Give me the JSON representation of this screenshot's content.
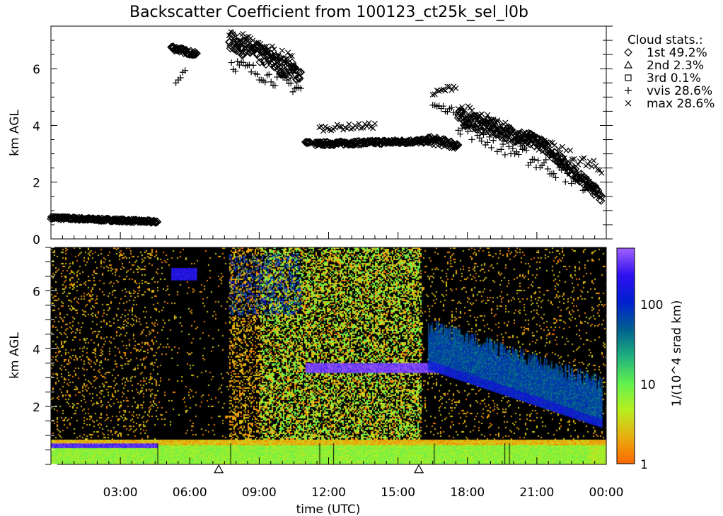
{
  "chart_data": [
    {
      "type": "scatter",
      "title": "Backscatter Coefficient from 100123_ct25k_sel_l0b",
      "ylabel": "km AGL",
      "xlim_hours_utc": [
        0,
        24
      ],
      "ylim": [
        0,
        7.5
      ],
      "yticks": [
        "0",
        "2",
        "4",
        "6"
      ],
      "legend": {
        "placement": "right",
        "title": "Cloud stats.:",
        "entries": [
          {
            "symbol": "diamond",
            "label": "1st",
            "value": "49.2%"
          },
          {
            "symbol": "triangle",
            "label": "2nd",
            "value": "2.3%"
          },
          {
            "symbol": "square",
            "label": "3rd",
            "value": "0.1%"
          },
          {
            "symbol": "plus",
            "label": "vvis",
            "value": "28.6%"
          },
          {
            "symbol": "x",
            "label": "max",
            "value": "28.6%"
          }
        ]
      },
      "series": [
        {
          "name": "1st",
          "symbol": "diamond",
          "segments": [
            {
              "t": [
                0.0,
                4.6
              ],
              "km": [
                0.75,
                0.6
              ],
              "spread": 0.08
            },
            {
              "t": [
                5.2,
                6.3
              ],
              "km": [
                6.75,
                6.5
              ],
              "spread": 0.15
            },
            {
              "t": [
                7.7,
                10.8
              ],
              "km": [
                7.0,
                5.8
              ],
              "spread": 0.6
            },
            {
              "t": [
                11.0,
                11.2
              ],
              "km": [
                3.4,
                3.4
              ],
              "spread": 0.05
            },
            {
              "t": [
                11.4,
                16.3
              ],
              "km": [
                3.35,
                3.45
              ],
              "spread": 0.12
            },
            {
              "t": [
                16.3,
                17.6
              ],
              "km": [
                3.5,
                3.3
              ],
              "spread": 0.25
            },
            {
              "t": [
                17.6,
                21.0
              ],
              "km": [
                4.3,
                3.4
              ],
              "spread": 0.5
            },
            {
              "t": [
                21.0,
                23.8
              ],
              "km": [
                3.5,
                1.5
              ],
              "spread": 0.35
            }
          ]
        },
        {
          "name": "vvis",
          "symbol": "plus",
          "segments": [
            {
              "t": [
                5.4,
                5.8
              ],
              "km": [
                5.5,
                6.0
              ],
              "spread": 0.2
            },
            {
              "t": [
                7.8,
                10.8
              ],
              "km": [
                6.2,
                5.3
              ],
              "spread": 0.5
            },
            {
              "t": [
                16.5,
                17.5
              ],
              "km": [
                4.7,
                4.5
              ],
              "spread": 0.2
            },
            {
              "t": [
                17.6,
                23.5
              ],
              "km": [
                4.0,
                1.8
              ],
              "spread": 0.6
            }
          ]
        },
        {
          "name": "max",
          "symbol": "x",
          "segments": [
            {
              "t": [
                7.7,
                10.5
              ],
              "km": [
                7.2,
                6.3
              ],
              "spread": 0.5
            },
            {
              "t": [
                11.6,
                14.0
              ],
              "km": [
                3.9,
                4.0
              ],
              "spread": 0.2
            },
            {
              "t": [
                16.5,
                17.5
              ],
              "km": [
                5.1,
                5.4
              ],
              "spread": 0.2
            },
            {
              "t": [
                17.6,
                23.8
              ],
              "km": [
                4.6,
                2.4
              ],
              "spread": 0.5
            }
          ]
        }
      ]
    },
    {
      "type": "heatmap",
      "ylabel": "km AGL",
      "xlabel": "time (UTC)",
      "xticks": [
        "03:00",
        "06:00",
        "09:00",
        "12:00",
        "15:00",
        "18:00",
        "21:00",
        "00:00"
      ],
      "yticks": [
        "2",
        "4",
        "6"
      ],
      "ylim": [
        0,
        7.5
      ],
      "colorbar": {
        "label": "1/(10^4 srad km)",
        "scale": "log",
        "range": [
          1,
          500
        ],
        "ticks": [
          "1",
          "10",
          "100"
        ],
        "colors": [
          "#ff6a00",
          "#e8b010",
          "#b8f020",
          "#60f050",
          "#20b080",
          "#006090",
          "#0020d0",
          "#3010f0",
          "#a060ff"
        ]
      },
      "second_cloud_markers_hours_utc": [
        7.25,
        15.9
      ],
      "features": [
        {
          "t": [
            0.0,
            4.6
          ],
          "km": [
            0.6,
            0.75
          ],
          "level": 300
        },
        {
          "t": [
            5.2,
            6.3
          ],
          "km": [
            6.4,
            6.8
          ],
          "level": 200
        },
        {
          "t": [
            7.7,
            10.8
          ],
          "km": [
            5.2,
            7.3
          ],
          "level": 60
        },
        {
          "t": [
            11.0,
            17.0
          ],
          "km": [
            3.2,
            3.5
          ],
          "level": 400
        },
        {
          "t": [
            16.3,
            23.8
          ],
          "km": [
            3.5,
            1.5
          ],
          "level": 80
        }
      ]
    }
  ]
}
